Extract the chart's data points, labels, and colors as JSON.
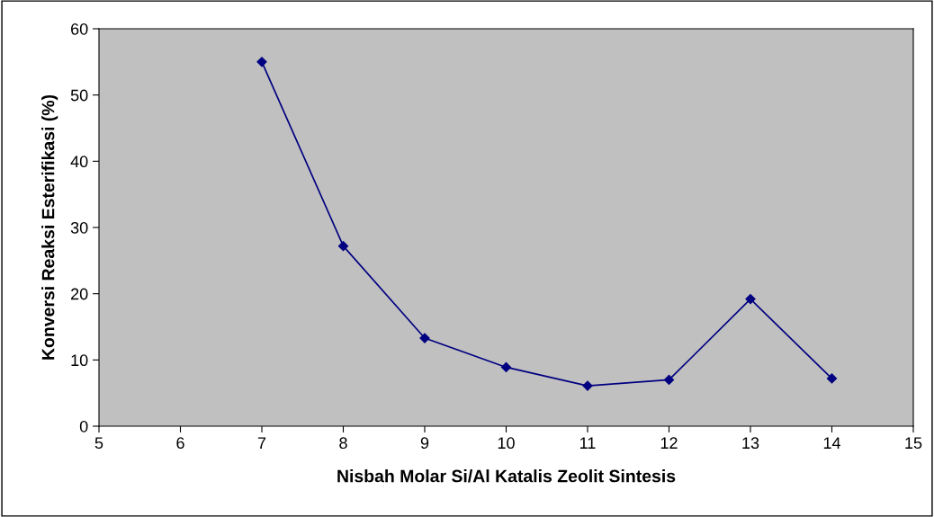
{
  "chart_data": {
    "type": "line",
    "xlabel": "Nisbah Molar Si/Al Katalis Zeolit Sintesis",
    "ylabel": "Konversi Reaksi Esterifikasi (%)",
    "x": [
      7,
      8,
      9,
      10,
      11,
      12,
      13,
      14
    ],
    "series": [
      {
        "color": "#000080",
        "values": [
          55,
          27.2,
          13.3,
          8.9,
          6.1,
          7,
          19.2,
          7.2
        ]
      }
    ],
    "xlim": [
      5,
      15
    ],
    "xticks": [
      5,
      6,
      7,
      8,
      9,
      10,
      11,
      12,
      13,
      14,
      15
    ],
    "ylim": [
      0,
      60
    ],
    "yticks": [
      0,
      10,
      20,
      30,
      40,
      50,
      60
    ],
    "grid": false,
    "legend": false,
    "marker": "diamond",
    "line_style": "solid"
  }
}
